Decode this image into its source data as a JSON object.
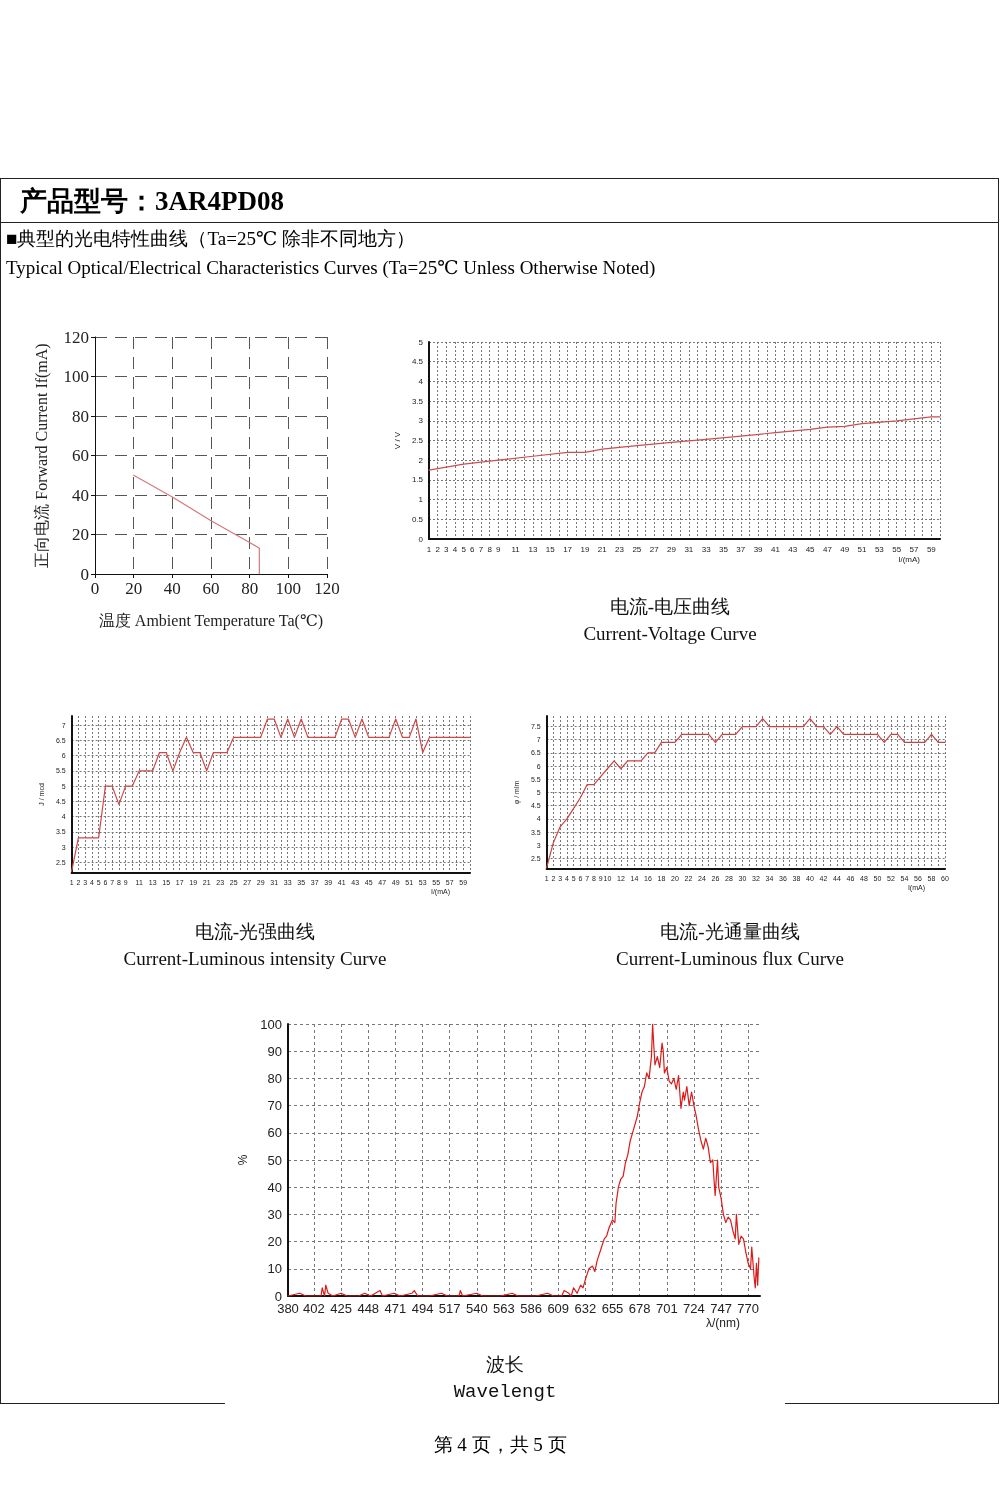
{
  "chart_data": [
    {
      "type": "other",
      "title": "产品型号：3AR4PD08",
      "subtitle": "■典型的光电特性曲线（Ta=25℃ 除非不同地方）",
      "annotations": [
        "Typical Optical/Electrical Characteristics Curves (Ta=25℃ Unless Otherwise Noted)",
        "第 4 页，共 5 页"
      ]
    },
    {
      "type": "line",
      "xlabel": "温度 Ambient Temperature Ta(℃)",
      "ylabel": "正向电流 Forward Current If(mA)",
      "x": [
        20,
        40,
        60,
        80,
        85,
        85
      ],
      "series": [
        {
          "color": "#d47a7a",
          "values": [
            50,
            39,
            27,
            16,
            13,
            0
          ]
        }
      ],
      "xlim": [
        0,
        120
      ],
      "ylim": [
        0,
        120
      ],
      "xticks": [
        0,
        20,
        40,
        60,
        80,
        100,
        120
      ],
      "yticks": [
        0,
        20,
        40,
        60,
        80,
        100,
        120
      ],
      "grid": true,
      "marker": "none",
      "line_style": "solid"
    },
    {
      "type": "line",
      "title": "电流-电压曲线",
      "subtitle": "Current-Voltage Curve",
      "xlabel": "I/(mA)",
      "ylabel": "V / V",
      "x": [
        1,
        5,
        9,
        13,
        17,
        19,
        21,
        25,
        29,
        33,
        37,
        41,
        45,
        47,
        49,
        51,
        55,
        59,
        60
      ],
      "series": [
        {
          "color": "#c85050",
          "values": [
            1.75,
            1.9,
            2.0,
            2.1,
            2.2,
            2.2,
            2.28,
            2.37,
            2.45,
            2.53,
            2.61,
            2.7,
            2.78,
            2.84,
            2.86,
            2.93,
            3.0,
            3.1,
            3.1
          ]
        }
      ],
      "xlim": [
        1,
        60
      ],
      "ylim": [
        0,
        5
      ],
      "xticks": [
        1,
        2,
        3,
        4,
        5,
        6,
        7,
        8,
        9,
        {
          "value": 10,
          "label": null
        },
        11,
        {
          "value": 12,
          "label": null
        },
        13,
        {
          "value": 14,
          "label": null
        },
        15,
        {
          "value": 16,
          "label": null
        },
        17,
        {
          "value": 18,
          "label": null
        },
        19,
        {
          "value": 20,
          "label": null
        },
        21,
        {
          "value": 22,
          "label": null
        },
        23,
        {
          "value": 24,
          "label": null
        },
        25,
        {
          "value": 26,
          "label": null
        },
        27,
        {
          "value": 28,
          "label": null
        },
        29,
        {
          "value": 30,
          "label": null
        },
        31,
        {
          "value": 32,
          "label": null
        },
        33,
        {
          "value": 34,
          "label": null
        },
        35,
        {
          "value": 36,
          "label": null
        },
        37,
        {
          "value": 38,
          "label": null
        },
        39,
        {
          "value": 40,
          "label": null
        },
        41,
        {
          "value": 42,
          "label": null
        },
        43,
        {
          "value": 44,
          "label": null
        },
        45,
        {
          "value": 46,
          "label": null
        },
        47,
        {
          "value": 48,
          "label": null
        },
        49,
        {
          "value": 50,
          "label": null
        },
        51,
        {
          "value": 52,
          "label": null
        },
        53,
        {
          "value": 54,
          "label": null
        },
        55,
        {
          "value": 56,
          "label": null
        },
        57,
        {
          "value": 58,
          "label": null
        },
        59,
        {
          "value": 60,
          "label": null
        }
      ],
      "yticks": [
        0,
        0.5,
        1,
        1.5,
        2,
        2.5,
        3,
        3.5,
        4,
        4.5,
        5
      ],
      "grid": true,
      "marker": "none",
      "line_style": "solid"
    },
    {
      "type": "line",
      "title": "电流-光强曲线",
      "subtitle": "Current-Luminous intensity Curve",
      "xlabel": "I/(mA)",
      "ylabel": "J / mcd",
      "x": [
        1,
        2,
        3,
        4,
        5,
        6,
        7,
        8,
        9,
        10,
        11,
        12,
        13,
        14,
        15,
        16,
        17,
        18,
        19,
        20,
        21,
        22,
        23,
        24,
        25,
        26,
        27,
        28,
        29,
        30,
        31,
        32,
        33,
        34,
        35,
        36,
        37,
        38,
        39,
        40,
        41,
        42,
        43,
        44,
        45,
        46,
        47,
        48,
        49,
        50,
        51,
        52,
        53,
        54,
        55,
        56,
        57,
        58,
        59,
        60
      ],
      "series": [
        {
          "color": "#d04848",
          "values": [
            2.2,
            3.3,
            3.3,
            3.3,
            3.3,
            5.0,
            5.0,
            4.4,
            5.0,
            5.0,
            5.5,
            5.5,
            5.5,
            6.1,
            6.1,
            5.5,
            6.1,
            6.6,
            6.1,
            6.1,
            5.5,
            6.1,
            6.1,
            6.1,
            6.6,
            6.6,
            6.6,
            6.6,
            6.6,
            7.2,
            7.2,
            6.6,
            7.2,
            6.6,
            7.2,
            6.6,
            6.6,
            6.6,
            6.6,
            6.6,
            7.2,
            7.2,
            6.6,
            7.2,
            6.6,
            6.6,
            6.6,
            6.6,
            7.2,
            6.6,
            6.6,
            7.2,
            6.1,
            6.6,
            6.6,
            6.6,
            6.6,
            6.6,
            6.6,
            6.6
          ]
        }
      ],
      "xlim": [
        1,
        60
      ],
      "ylim": [
        2.15,
        7.3
      ],
      "xticks": [
        1,
        2,
        3,
        4,
        5,
        6,
        7,
        8,
        9,
        {
          "value": 10,
          "label": null
        },
        11,
        {
          "value": 12,
          "label": null
        },
        13,
        {
          "value": 14,
          "label": null
        },
        15,
        {
          "value": 16,
          "label": null
        },
        17,
        {
          "value": 18,
          "label": null
        },
        19,
        {
          "value": 20,
          "label": null
        },
        21,
        {
          "value": 22,
          "label": null
        },
        23,
        {
          "value": 24,
          "label": null
        },
        25,
        {
          "value": 26,
          "label": null
        },
        27,
        {
          "value": 28,
          "label": null
        },
        29,
        {
          "value": 30,
          "label": null
        },
        31,
        {
          "value": 32,
          "label": null
        },
        33,
        {
          "value": 34,
          "label": null
        },
        35,
        {
          "value": 36,
          "label": null
        },
        37,
        {
          "value": 38,
          "label": null
        },
        39,
        {
          "value": 40,
          "label": null
        },
        41,
        {
          "value": 42,
          "label": null
        },
        43,
        {
          "value": 44,
          "label": null
        },
        45,
        {
          "value": 46,
          "label": null
        },
        47,
        {
          "value": 48,
          "label": null
        },
        49,
        {
          "value": 50,
          "label": null
        },
        51,
        {
          "value": 52,
          "label": null
        },
        53,
        {
          "value": 54,
          "label": null
        },
        55,
        {
          "value": 56,
          "label": null
        },
        57,
        {
          "value": 58,
          "label": null
        },
        59,
        {
          "value": 60,
          "label": null
        }
      ],
      "yticks": [
        2.5,
        3,
        3.5,
        4,
        4.5,
        5,
        5.5,
        6,
        6.5,
        7
      ],
      "grid": true,
      "marker": "none",
      "line_style": "solid"
    },
    {
      "type": "line",
      "title": "电流-光通量曲线",
      "subtitle": "Current-Luminous flux Curve",
      "xlabel": "I(mA)",
      "ylabel": "φ / mlm",
      "x": [
        1,
        2,
        3,
        4,
        5,
        6,
        7,
        8,
        9,
        10,
        11,
        12,
        13,
        14,
        15,
        16,
        17,
        18,
        19,
        20,
        21,
        22,
        23,
        24,
        25,
        26,
        27,
        28,
        29,
        30,
        31,
        32,
        33,
        34,
        35,
        36,
        37,
        38,
        39,
        40,
        41,
        42,
        43,
        44,
        45,
        46,
        47,
        48,
        49,
        50,
        51,
        52,
        53,
        54,
        55,
        56,
        57,
        58,
        59,
        60
      ],
      "series": [
        {
          "color": "#c84444",
          "values": [
            2.15,
            3.1,
            3.7,
            4.0,
            4.4,
            4.8,
            5.3,
            5.3,
            5.6,
            5.9,
            6.2,
            5.9,
            6.2,
            6.2,
            6.2,
            6.5,
            6.5,
            6.9,
            6.9,
            6.9,
            7.2,
            7.2,
            7.2,
            7.2,
            7.2,
            6.9,
            7.2,
            7.2,
            7.2,
            7.5,
            7.5,
            7.5,
            7.8,
            7.5,
            7.5,
            7.5,
            7.5,
            7.5,
            7.5,
            7.8,
            7.5,
            7.5,
            7.2,
            7.5,
            7.2,
            7.2,
            7.2,
            7.2,
            7.2,
            7.2,
            6.9,
            7.2,
            7.2,
            6.9,
            6.9,
            6.9,
            6.9,
            7.2,
            6.9,
            6.9
          ]
        }
      ],
      "xlim": [
        1,
        60
      ],
      "ylim": [
        2.1,
        7.9
      ],
      "xticks": [
        1,
        2,
        3,
        4,
        5,
        6,
        7,
        8,
        9,
        10,
        {
          "value": 11,
          "label": null
        },
        12,
        {
          "value": 13,
          "label": null
        },
        14,
        {
          "value": 15,
          "label": null
        },
        16,
        {
          "value": 17,
          "label": null
        },
        18,
        {
          "value": 19,
          "label": null
        },
        20,
        {
          "value": 21,
          "label": null
        },
        22,
        {
          "value": 23,
          "label": null
        },
        24,
        {
          "value": 25,
          "label": null
        },
        26,
        {
          "value": 27,
          "label": null
        },
        28,
        {
          "value": 29,
          "label": null
        },
        30,
        {
          "value": 31,
          "label": null
        },
        32,
        {
          "value": 33,
          "label": null
        },
        34,
        {
          "value": 35,
          "label": null
        },
        36,
        {
          "value": 37,
          "label": null
        },
        38,
        {
          "value": 39,
          "label": null
        },
        40,
        {
          "value": 41,
          "label": null
        },
        42,
        {
          "value": 43,
          "label": null
        },
        44,
        {
          "value": 45,
          "label": null
        },
        46,
        {
          "value": 47,
          "label": null
        },
        48,
        {
          "value": 49,
          "label": null
        },
        50,
        {
          "value": 51,
          "label": null
        },
        52,
        {
          "value": 53,
          "label": null
        },
        54,
        {
          "value": 55,
          "label": null
        },
        56,
        {
          "value": 57,
          "label": null
        },
        58,
        {
          "value": 59,
          "label": null
        },
        60
      ],
      "yticks": [
        2.5,
        3,
        3.5,
        4,
        4.5,
        5,
        5.5,
        6,
        6.5,
        7,
        7.5
      ],
      "grid": true,
      "marker": "none",
      "line_style": "solid"
    },
    {
      "type": "line",
      "title": "波长",
      "subtitle": "Wavelengt",
      "xlabel": "λ/(nm)",
      "ylabel": "%",
      "x": [
        380,
        390,
        395,
        408,
        409,
        411,
        412,
        414,
        418,
        425,
        430,
        440,
        445,
        450,
        458,
        460,
        470,
        475,
        485,
        487,
        490,
        500,
        510,
        515,
        525,
        526,
        528,
        540,
        545,
        560,
        570,
        575,
        590,
        600,
        605,
        612,
        614,
        618,
        620,
        622,
        625,
        628,
        630,
        632,
        635,
        638,
        640,
        642,
        645,
        648,
        650,
        652,
        655,
        657,
        658,
        660,
        662,
        664,
        666,
        668,
        670,
        672,
        674,
        676,
        678,
        680,
        682,
        684,
        686,
        688,
        689,
        690,
        691,
        693,
        695,
        697,
        698,
        699,
        701,
        703,
        705,
        707,
        709,
        711,
        713,
        715,
        716,
        718,
        720,
        722,
        724,
        726,
        728,
        730,
        732,
        734,
        736,
        738,
        740,
        741,
        742,
        744,
        745,
        747,
        749,
        751,
        753,
        755,
        757,
        759,
        760,
        762,
        764,
        766,
        768,
        770,
        772,
        773,
        775,
        776,
        777,
        778,
        779
      ],
      "series": [
        {
          "color": "#dd1a1a",
          "values": [
            0,
            1,
            0,
            0,
            3,
            0,
            4,
            1,
            0,
            1,
            0,
            0,
            1,
            0,
            2,
            0,
            1,
            0,
            1,
            2,
            0,
            0,
            1,
            0,
            0,
            2,
            0,
            1,
            0,
            0,
            1,
            0,
            0,
            1,
            0,
            0,
            2,
            1,
            0,
            3,
            1,
            4,
            3,
            6,
            10,
            11,
            9,
            13,
            17,
            21,
            22,
            25,
            28,
            27,
            34,
            40,
            43,
            44,
            49,
            52,
            57,
            60,
            63,
            66,
            71,
            75,
            77,
            82,
            80,
            88,
            100,
            92,
            85,
            88,
            84,
            93,
            90,
            82,
            84,
            79,
            78,
            80,
            76,
            81,
            69,
            75,
            72,
            77,
            70,
            75,
            70,
            66,
            61,
            57,
            54,
            58,
            55,
            49,
            50,
            43,
            37,
            50,
            40,
            36,
            30,
            27,
            29,
            28,
            24,
            21,
            30,
            19,
            22,
            21,
            16,
            12,
            10,
            18,
            7,
            3,
            12,
            4,
            14
          ]
        }
      ],
      "xlim": [
        380,
        780
      ],
      "ylim": [
        0,
        100
      ],
      "xticks": [
        380,
        402,
        425,
        448,
        471,
        494,
        517,
        540,
        563,
        586,
        609,
        632,
        655,
        678,
        701,
        724,
        747,
        770
      ],
      "yticks": [
        0,
        10,
        20,
        30,
        40,
        50,
        60,
        70,
        80,
        90,
        100
      ],
      "grid": true,
      "marker": "none",
      "line_style": "solid"
    }
  ]
}
